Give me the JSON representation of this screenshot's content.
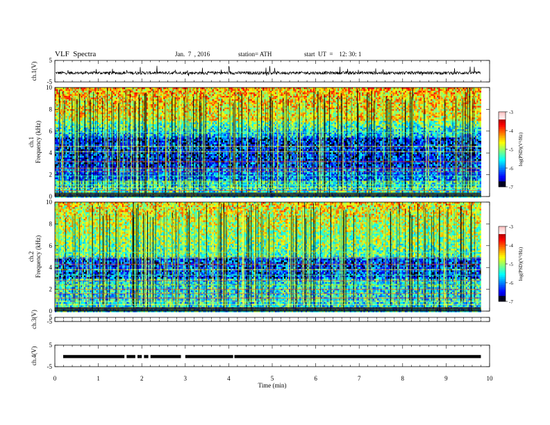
{
  "header": {
    "title": "VLF  Spectra",
    "date": "Jan.  7  , 2016",
    "station": "station= ATH",
    "start": "start  UT  =    12: 30: 1"
  },
  "chart_data": [
    {
      "type": "line",
      "panel": "ch1-waveform",
      "ylabel": "ch.1(V)",
      "ylim": [
        -5,
        5
      ],
      "yticks": [
        "5",
        "-5"
      ],
      "baseline": -0.8,
      "color": "#000000"
    },
    {
      "type": "heatmap",
      "panel": "ch1-spectrogram",
      "ylabel_top": "ch.1",
      "ylabel": "Frequency  (kHz)",
      "ylim": [
        0,
        10
      ],
      "yticks": [
        "0",
        "2",
        "4",
        "6",
        "8",
        "10"
      ],
      "xlim": [
        0,
        10
      ],
      "colorbar": {
        "label": "log(PSD)(V²/Hz)",
        "range": [
          -7,
          -3
        ],
        "ticks": [
          "-3",
          "-4",
          "-5",
          "-6",
          "-7"
        ]
      }
    },
    {
      "type": "heatmap",
      "panel": "ch2-spectrogram",
      "ylabel_top": "ch.2",
      "ylabel": "Frequency  (kHz)",
      "ylim": [
        0,
        10
      ],
      "yticks": [
        "0",
        "2",
        "4",
        "6",
        "8",
        "10"
      ],
      "xlim": [
        0,
        10
      ],
      "colorbar": {
        "label": "log(PSD)(V²/Hz)",
        "range": [
          -7,
          -3
        ],
        "ticks": [
          "-3",
          "-4",
          "-5",
          "-6",
          "-7"
        ]
      }
    },
    {
      "type": "line",
      "panel": "ch3-waveform",
      "ylabel": "ch.3(V)",
      "ylim": [
        -5,
        5
      ],
      "yticks": [
        "5",
        "-5"
      ],
      "baseline": -5,
      "color": "#000000"
    },
    {
      "type": "line",
      "panel": "ch4-waveform",
      "ylabel": "ch.4(V)",
      "ylim": [
        -5,
        5
      ],
      "yticks": [
        "5",
        "-5"
      ],
      "baseline": -0.3,
      "color": "#000000"
    }
  ],
  "xaxis": {
    "label": "Time  (min)",
    "range": [
      0,
      10
    ],
    "ticks": [
      "0",
      "1",
      "2",
      "3",
      "4",
      "5",
      "6",
      "7",
      "8",
      "9",
      "10"
    ],
    "data_end": 9.8
  }
}
